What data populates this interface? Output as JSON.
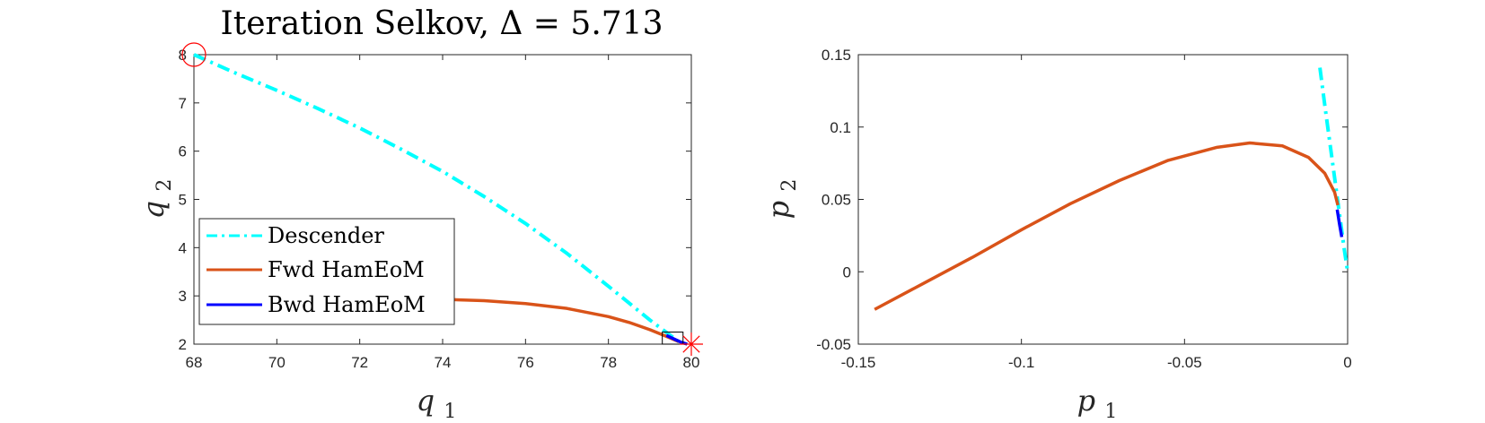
{
  "chart_data": [
    {
      "type": "line",
      "title": "Iteration Selkov, Δ = 5.713",
      "xlabel": "q1",
      "ylabel": "q2",
      "xlim": [
        68,
        80
      ],
      "ylim": [
        2,
        8
      ],
      "xticks": [
        "68",
        "70",
        "72",
        "74",
        "76",
        "78",
        "80"
      ],
      "yticks": [
        "2",
        "3",
        "4",
        "5",
        "6",
        "7",
        "8"
      ],
      "grid": false,
      "legend_position": "bottom-left",
      "legend": [
        "Descender",
        "Fwd HamEoM",
        "Bwd HamEoM"
      ],
      "colors": {
        "descender": "#00FFFF",
        "fwd": "#D95319",
        "bwd": "#0000FF",
        "marker": "#FF0000",
        "box": "#000000"
      },
      "series": [
        {
          "name": "Descender",
          "style": "dash-dot",
          "x": [
            68,
            69,
            70,
            71,
            72,
            73,
            74,
            75,
            76,
            77,
            78,
            79,
            79.7
          ],
          "y": [
            8,
            7.62,
            7.26,
            6.88,
            6.48,
            6.04,
            5.58,
            5.06,
            4.5,
            3.88,
            3.2,
            2.5,
            2.05
          ]
        },
        {
          "name": "Fwd HamEoM",
          "style": "solid",
          "x": [
            73.3,
            74,
            75,
            76,
            77,
            78,
            78.5,
            79,
            79.4,
            79.7
          ],
          "y": [
            2.95,
            2.93,
            2.9,
            2.84,
            2.74,
            2.57,
            2.45,
            2.3,
            2.16,
            2.05
          ]
        },
        {
          "name": "Bwd HamEoM",
          "style": "solid",
          "x": [
            79.4,
            79.6,
            79.75,
            79.9
          ],
          "y": [
            2.18,
            2.1,
            2.04,
            2.0
          ]
        }
      ],
      "markers": [
        {
          "kind": "circle",
          "x": 68,
          "y": 8
        },
        {
          "kind": "asterisk",
          "x": 80,
          "y": 2
        }
      ],
      "zoom_box": {
        "x": [
          79.3,
          79.8
        ],
        "y": [
          2.0,
          2.25
        ]
      }
    },
    {
      "type": "line",
      "title": "",
      "xlabel": "p1",
      "ylabel": "p2",
      "xlim": [
        -0.15,
        0
      ],
      "ylim": [
        -0.05,
        0.15
      ],
      "xticks": [
        "-0.15",
        "-0.1",
        "-0.05",
        "0"
      ],
      "yticks": [
        "-0.05",
        "0",
        "0.05",
        "0.1",
        "0.15"
      ],
      "grid": false,
      "series": [
        {
          "name": "Descender",
          "style": "dash-dot",
          "x": [
            -0.0085,
            -0.007,
            -0.0055,
            -0.004,
            -0.0025,
            -0.001,
            0
          ],
          "y": [
            0.141,
            0.115,
            0.09,
            0.065,
            0.04,
            0.015,
            0
          ]
        },
        {
          "name": "Fwd HamEoM",
          "style": "solid",
          "x": [
            -0.145,
            -0.13,
            -0.115,
            -0.1,
            -0.085,
            -0.07,
            -0.055,
            -0.04,
            -0.03,
            -0.02,
            -0.012,
            -0.007,
            -0.004,
            -0.003
          ],
          "y": [
            -0.026,
            -0.008,
            0.01,
            0.029,
            0.047,
            0.063,
            0.077,
            0.086,
            0.089,
            0.087,
            0.079,
            0.068,
            0.055,
            0.046
          ]
        },
        {
          "name": "Bwd HamEoM",
          "style": "solid",
          "x": [
            -0.0032,
            -0.0025,
            -0.0018
          ],
          "y": [
            0.043,
            0.033,
            0.024
          ]
        }
      ]
    }
  ]
}
